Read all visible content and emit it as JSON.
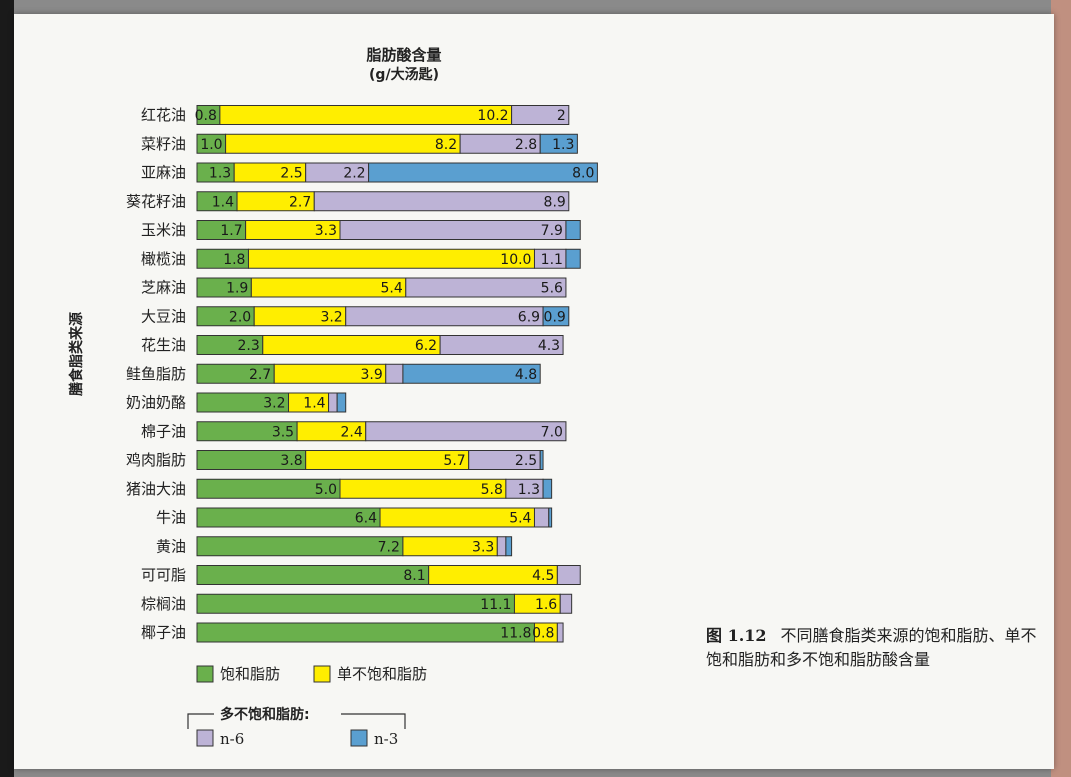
{
  "caption": {
    "fig_no": "图 1.12",
    "text": "不同膳食脂类来源的饱和脂肪、单不饱和脂肪和多不饱和脂肪酸含量"
  },
  "colors": {
    "saturated": "#6ab04c",
    "mono": "#ffee00",
    "n6": "#bdb3d6",
    "n3": "#5a9fd0"
  },
  "chart_data": {
    "type": "bar",
    "orientation": "horizontal",
    "stacked": true,
    "title": "脂肪酸含量",
    "subtitle": "(g/大汤匙)",
    "xlabel": "",
    "ylabel": "膳食脂类来源",
    "categories": [
      "红花油",
      "菜籽油",
      "亚麻油",
      "葵花籽油",
      "玉米油",
      "橄榄油",
      "芝麻油",
      "大豆油",
      "花生油",
      "鲑鱼脂肪",
      "奶油奶酪",
      "棉子油",
      "鸡肉脂肪",
      "猪油大油",
      "牛油",
      "黄油",
      "可可脂",
      "棕榈油",
      "椰子油"
    ],
    "series": [
      {
        "name": "饱和脂肪",
        "key": "saturated",
        "values": [
          0.8,
          1.0,
          1.3,
          1.4,
          1.7,
          1.8,
          1.9,
          2.0,
          2.3,
          2.7,
          3.2,
          3.5,
          3.8,
          5.0,
          6.4,
          7.2,
          8.1,
          11.1,
          11.8
        ],
        "labels": [
          "0.8",
          "1.0",
          "1.3",
          "1.4",
          "1.7",
          "1.8",
          "1.9",
          "2.0",
          "2.3",
          "2.7",
          "3.2",
          "3.5",
          "3.8",
          "5.0",
          "6.4",
          "7.2",
          "8.1",
          "11.1",
          "11.8"
        ]
      },
      {
        "name": "单不饱和脂肪",
        "key": "mono",
        "values": [
          10.2,
          8.2,
          2.5,
          2.7,
          3.3,
          10.0,
          5.4,
          3.2,
          6.2,
          3.9,
          1.4,
          2.4,
          5.7,
          5.8,
          5.4,
          3.3,
          4.5,
          1.6,
          0.8
        ],
        "labels": [
          "10.2",
          "8.2",
          "2.5",
          "2.7",
          "3.3",
          "10.0",
          "5.4",
          "3.2",
          "6.2",
          "3.9",
          "1.4",
          "2.4",
          "5.7",
          "5.8",
          "5.4",
          "3.3",
          "4.5",
          "1.6",
          "0.8"
        ]
      },
      {
        "name": "n-6",
        "key": "n6",
        "values": [
          2,
          2.8,
          2.2,
          8.9,
          7.9,
          1.1,
          5.6,
          6.9,
          4.3,
          0.6,
          0.3,
          7.0,
          2.5,
          1.3,
          0.5,
          0.3,
          0.8,
          0.4,
          0.2
        ],
        "labels": [
          "2",
          "2.8",
          "2.2",
          "8.9",
          "7.9",
          "1.1",
          "5.6",
          "6.9",
          "4.3",
          "",
          "",
          "7.0",
          "2.5",
          "1.3",
          "",
          "",
          "",
          "",
          ""
        ]
      },
      {
        "name": "n-3",
        "key": "n3",
        "values": [
          0,
          1.3,
          8.0,
          0,
          0.5,
          0.5,
          0,
          0.9,
          0,
          4.8,
          0.3,
          0,
          0.1,
          0.3,
          0.1,
          0.2,
          0,
          0,
          0
        ],
        "labels": [
          "",
          "1.3",
          "8.0",
          "",
          "",
          "",
          "",
          "0.9",
          "",
          "4.8",
          "",
          "",
          "",
          "",
          "",
          "",
          "",
          "",
          ""
        ]
      }
    ],
    "xlim": [
      0,
      16
    ],
    "grid": false,
    "legend": {
      "position": "bottom-left",
      "items": [
        {
          "key": "saturated",
          "label": "饱和脂肪"
        },
        {
          "key": "mono",
          "label": "单不饱和脂肪"
        }
      ],
      "group_title": "多不饱和脂肪:",
      "group_items": [
        {
          "key": "n6",
          "label": "n-6"
        },
        {
          "key": "n3",
          "label": "n-3"
        }
      ]
    }
  }
}
